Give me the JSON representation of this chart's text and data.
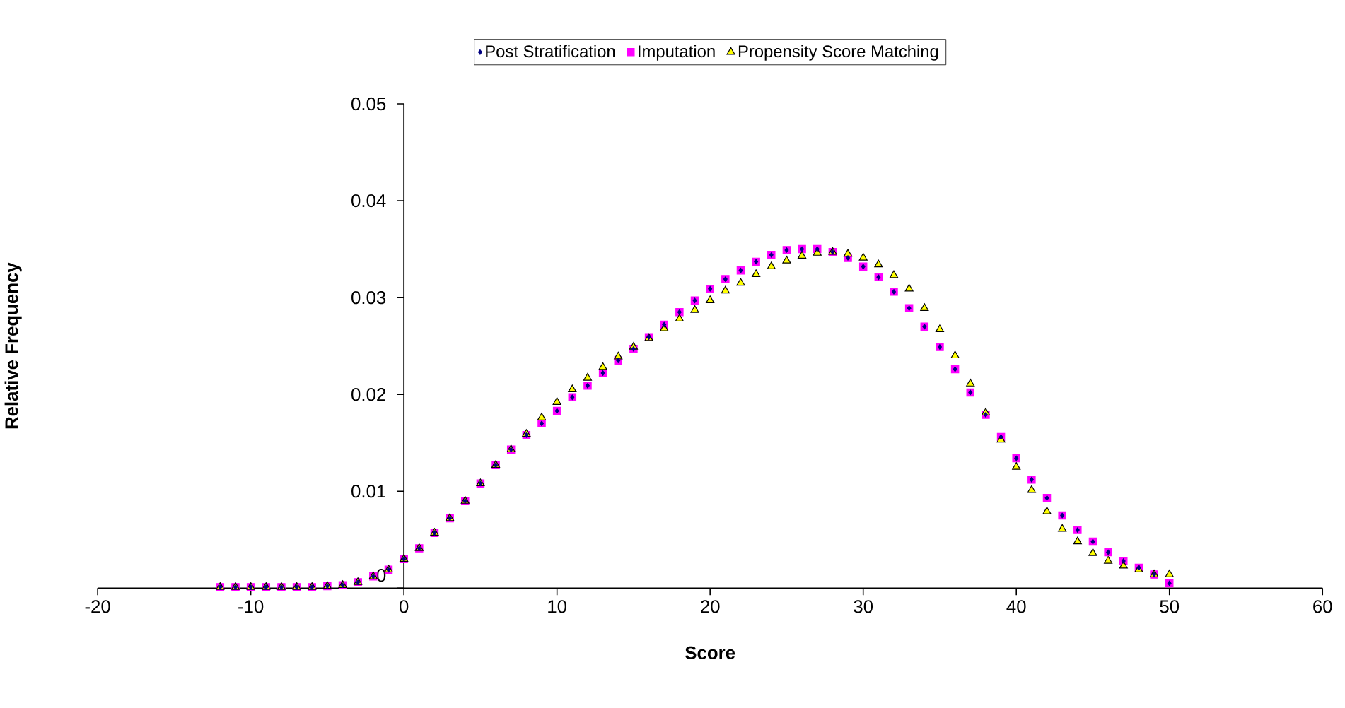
{
  "chart_data": {
    "type": "scatter",
    "xlabel": "Score",
    "ylabel": "Relative Frequency",
    "x": [
      -12,
      -11,
      -10,
      -9,
      -8,
      -7,
      -6,
      -5,
      -4,
      -3,
      -2,
      -1,
      0,
      1,
      2,
      3,
      4,
      5,
      6,
      7,
      8,
      9,
      10,
      11,
      12,
      13,
      14,
      15,
      16,
      17,
      18,
      19,
      20,
      21,
      22,
      23,
      24,
      25,
      26,
      27,
      28,
      29,
      30,
      31,
      32,
      33,
      34,
      35,
      36,
      37,
      38,
      39,
      40,
      41,
      42,
      43,
      44,
      45,
      46,
      47,
      48,
      49,
      50
    ],
    "xlim": [
      -20,
      60
    ],
    "xticks": [
      -20,
      -10,
      0,
      10,
      20,
      30,
      40,
      50,
      60
    ],
    "ylim": [
      0,
      0.05
    ],
    "yticks": [
      0,
      0.01,
      0.02,
      0.03,
      0.04,
      0.05
    ],
    "grid": false,
    "legend": "top",
    "series": [
      {
        "name": "Imputation",
        "color": "#ff00ff",
        "marker": "square",
        "values": [
          0.0001,
          0.0001,
          0.0001,
          0.0001,
          0.0001,
          0.0001,
          0.0001,
          0.0002,
          0.0003,
          0.0006,
          0.0012,
          0.0019,
          0.003,
          0.0041,
          0.0057,
          0.0072,
          0.009,
          0.0108,
          0.0127,
          0.0143,
          0.0158,
          0.017,
          0.0183,
          0.0197,
          0.0209,
          0.0222,
          0.0235,
          0.0247,
          0.0259,
          0.0272,
          0.0285,
          0.0297,
          0.0309,
          0.0319,
          0.0328,
          0.0337,
          0.0344,
          0.0349,
          0.035,
          0.035,
          0.0347,
          0.0341,
          0.0332,
          0.0321,
          0.0306,
          0.0289,
          0.027,
          0.0249,
          0.0226,
          0.0202,
          0.0179,
          0.0156,
          0.0134,
          0.0112,
          0.0093,
          0.0075,
          0.006,
          0.0048,
          0.0037,
          0.0028,
          0.0021,
          0.0014,
          0.0005
        ]
      },
      {
        "name": "Propensity Score Matching",
        "color": "#ffff00",
        "marker": "triangle",
        "values": [
          0.0001,
          0.0001,
          0.0001,
          0.0001,
          0.0001,
          0.0001,
          0.0001,
          0.0002,
          0.0003,
          0.0006,
          0.0012,
          0.0019,
          0.003,
          0.0041,
          0.0057,
          0.0072,
          0.009,
          0.0108,
          0.0127,
          0.0143,
          0.0159,
          0.0176,
          0.0192,
          0.0205,
          0.0217,
          0.0228,
          0.0239,
          0.0249,
          0.0258,
          0.0268,
          0.0278,
          0.0287,
          0.0297,
          0.0307,
          0.0315,
          0.0324,
          0.0332,
          0.0338,
          0.0343,
          0.0346,
          0.0347,
          0.0345,
          0.0341,
          0.0334,
          0.0323,
          0.0309,
          0.0289,
          0.0267,
          0.024,
          0.0211,
          0.0181,
          0.0153,
          0.0125,
          0.0101,
          0.0079,
          0.0061,
          0.0048,
          0.0036,
          0.0028,
          0.0023,
          0.0019,
          0.0014,
          0.0014
        ]
      },
      {
        "name": "Post Stratification",
        "color": "#000080",
        "marker": "diamond",
        "values": [
          0.0001,
          0.0001,
          0.0001,
          0.0001,
          0.0001,
          0.0001,
          0.0001,
          0.0002,
          0.0003,
          0.0006,
          0.0012,
          0.0019,
          0.003,
          0.0041,
          0.0057,
          0.0072,
          0.009,
          0.0108,
          0.0127,
          0.0143,
          0.0158,
          0.017,
          0.0183,
          0.0197,
          0.0209,
          0.0222,
          0.0235,
          0.0247,
          0.0259,
          0.0272,
          0.0285,
          0.0297,
          0.0309,
          0.0319,
          0.0328,
          0.0337,
          0.0344,
          0.0349,
          0.035,
          0.035,
          0.0347,
          0.0341,
          0.0332,
          0.0321,
          0.0306,
          0.0289,
          0.027,
          0.0249,
          0.0226,
          0.0202,
          0.0179,
          0.0156,
          0.0134,
          0.0112,
          0.0093,
          0.0075,
          0.006,
          0.0048,
          0.0037,
          0.0028,
          0.0021,
          0.0014,
          0.0005
        ]
      }
    ]
  }
}
